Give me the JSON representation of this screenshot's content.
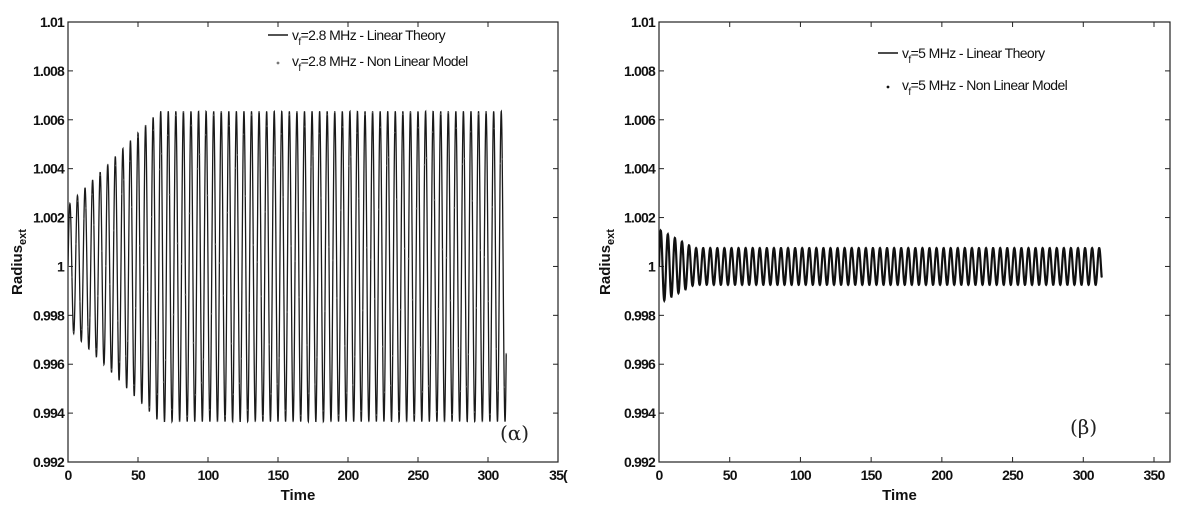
{
  "chart_data": [
    {
      "type": "line",
      "title": "",
      "xlabel": "Time",
      "ylabel": "Radius",
      "ylabel_sub": "ext",
      "panel_label": "(α)",
      "xlim": [
        0,
        350
      ],
      "ylim": [
        0.992,
        1.01
      ],
      "xticks": [
        "0",
        "50",
        "100",
        "150",
        "200",
        "250",
        "300",
        "35("
      ],
      "yticks": [
        "1.01",
        "1.008",
        "1.006",
        "1.004",
        "1.002",
        "1",
        "0.998",
        "0.996",
        "0.994",
        "0.992"
      ],
      "legend_position": "top-right",
      "series": [
        {
          "name_prefix": "v",
          "name_sub": "f",
          "name_rest": "=2.8 MHz - Linear Theory",
          "style": "line",
          "color": "#1a1a1a",
          "x_end": 313,
          "frequency_per_time": 0.185,
          "center": 1.0,
          "amplitude_start": 0.0025,
          "amplitude_steady": 0.00635,
          "steady_from": 65
        },
        {
          "name_prefix": "v",
          "name_sub": "f",
          "name_rest": "=2.8 MHz - Non Linear Model",
          "style": "points",
          "color": "#777777",
          "x_end": 313,
          "frequency_per_time": 0.185,
          "center": 1.0,
          "amplitude_start": 0.0025,
          "amplitude_steady": 0.00635,
          "steady_from": 65
        }
      ]
    },
    {
      "type": "line",
      "title": "",
      "xlabel": "Time",
      "ylabel": "Radius",
      "ylabel_sub": "ext",
      "panel_label": "(β)",
      "xlim": [
        0,
        350
      ],
      "ylim": [
        0.992,
        1.01
      ],
      "xticks": [
        "0",
        "50",
        "100",
        "150",
        "200",
        "250",
        "300",
        "350"
      ],
      "yticks": [
        "1.01",
        "1.008",
        "1.006",
        "1.004",
        "1.002",
        "1",
        "0.998",
        "0.996",
        "0.994",
        "0.992"
      ],
      "legend_position": "top-right",
      "series": [
        {
          "name_prefix": "v",
          "name_sub": "f",
          "name_rest": "=5 MHz - Linear Theory",
          "style": "line",
          "color": "#111111",
          "x_end": 313,
          "frequency_per_time": 0.2,
          "center": 1.0,
          "amplitude_start": 0.0015,
          "amplitude_steady": 0.00075,
          "steady_from": 25
        },
        {
          "name_prefix": "v",
          "name_sub": "f",
          "name_rest": "=5  MHz - Non Linear Model",
          "style": "points",
          "color": "#111111",
          "x_end": 313,
          "frequency_per_time": 0.2,
          "center": 1.0,
          "amplitude_start": 0.0015,
          "amplitude_steady": 0.00075,
          "steady_from": 25
        }
      ]
    }
  ]
}
